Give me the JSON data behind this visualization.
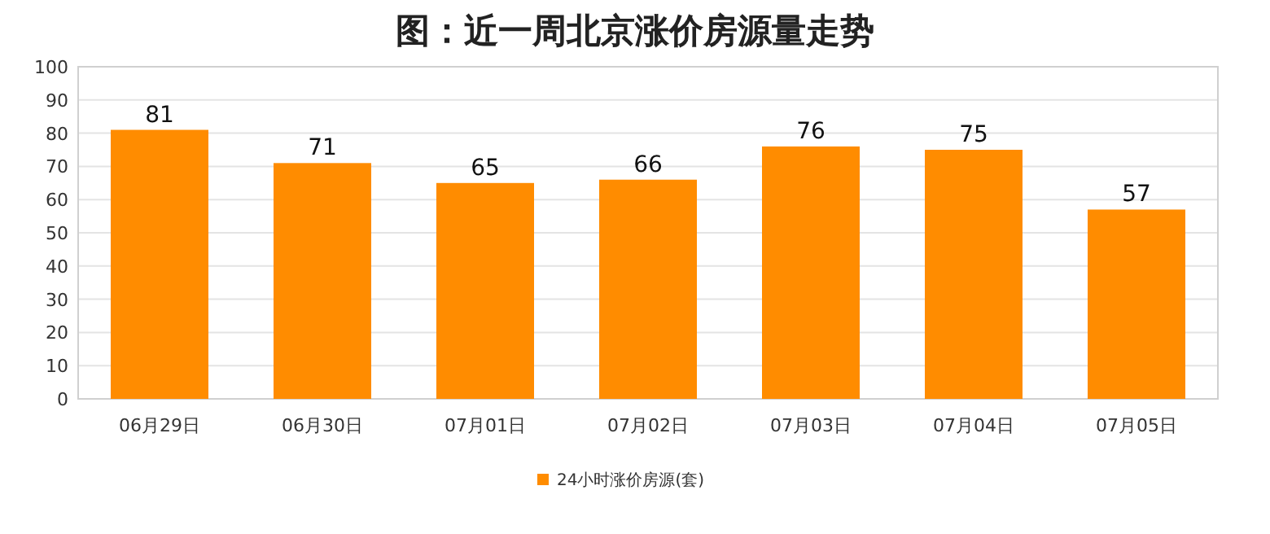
{
  "chart_data": {
    "type": "bar",
    "title": "图：近一周北京涨价房源量走势",
    "categories": [
      "06月29日",
      "06月30日",
      "07月01日",
      "07月02日",
      "07月03日",
      "07月04日",
      "07月05日"
    ],
    "series": [
      {
        "name": "24小时涨价房源(套)",
        "color": "#ff8c00",
        "values": [
          81,
          71,
          65,
          66,
          76,
          75,
          57
        ]
      }
    ],
    "ylim": [
      0,
      100
    ],
    "yticks": [
      0,
      10,
      20,
      30,
      40,
      50,
      60,
      70,
      80,
      90,
      100
    ],
    "grid": "y",
    "data_labels": true,
    "legend": "bottom"
  }
}
